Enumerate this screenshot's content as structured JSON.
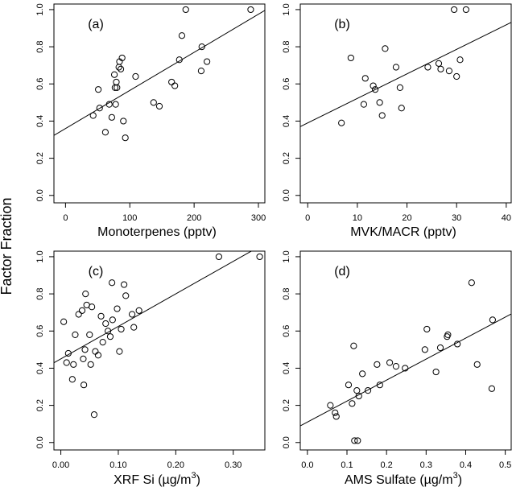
{
  "ylabel": "Factor Fraction",
  "chart_data": [
    {
      "type": "scatter",
      "panel": "(a)",
      "xlabel": "Monoterpenes (pptv)",
      "ylabel": "Factor Fraction",
      "xlim": [
        -18,
        310
      ],
      "ylim": [
        -0.04,
        1.03
      ],
      "xticks": [
        0,
        100,
        200,
        300
      ],
      "xtick_labels": [
        "0",
        "100",
        "200",
        "300"
      ],
      "yticks": [
        0.0,
        0.2,
        0.4,
        0.6,
        0.8,
        1.0
      ],
      "ytick_labels": [
        "0.0",
        "0.2",
        "0.4",
        "0.6",
        "0.8",
        "1.0"
      ],
      "grid": false,
      "points": [
        [
          43,
          0.43
        ],
        [
          51,
          0.57
        ],
        [
          53,
          0.47
        ],
        [
          62,
          0.34
        ],
        [
          68,
          0.49
        ],
        [
          72,
          0.42
        ],
        [
          76,
          0.65
        ],
        [
          77,
          0.58
        ],
        [
          78,
          0.49
        ],
        [
          79,
          0.61
        ],
        [
          80,
          0.58
        ],
        [
          83,
          0.69
        ],
        [
          84,
          0.72
        ],
        [
          86,
          0.68
        ],
        [
          88,
          0.74
        ],
        [
          90,
          0.4
        ],
        [
          93,
          0.31
        ],
        [
          109,
          0.64
        ],
        [
          137,
          0.5
        ],
        [
          146,
          0.48
        ],
        [
          165,
          0.61
        ],
        [
          170,
          0.59
        ],
        [
          177,
          0.73
        ],
        [
          181,
          0.86
        ],
        [
          187,
          1.0
        ],
        [
          211,
          0.67
        ],
        [
          212,
          0.8
        ],
        [
          220,
          0.72
        ],
        [
          288,
          1.0
        ]
      ],
      "fit": {
        "intercept": 0.36,
        "slope": 0.00205
      }
    },
    {
      "type": "scatter",
      "panel": "(b)",
      "xlabel": "MVK/MACR (pptv)",
      "ylabel": "Factor Fraction",
      "xlim": [
        -1.5,
        41
      ],
      "ylim": [
        -0.04,
        1.03
      ],
      "xticks": [
        0,
        10,
        20,
        30,
        40
      ],
      "xtick_labels": [
        "0",
        "10",
        "20",
        "30",
        "40"
      ],
      "yticks": [
        0.0,
        0.2,
        0.4,
        0.6,
        0.8,
        1.0
      ],
      "ytick_labels": [
        "0.0",
        "0.2",
        "0.4",
        "0.6",
        "0.8",
        "1.0"
      ],
      "grid": false,
      "points": [
        [
          6.8,
          0.39
        ],
        [
          8.7,
          0.74
        ],
        [
          11.3,
          0.49
        ],
        [
          11.6,
          0.63
        ],
        [
          13.2,
          0.59
        ],
        [
          13.6,
          0.57
        ],
        [
          14.5,
          0.5
        ],
        [
          15.0,
          0.43
        ],
        [
          15.6,
          0.79
        ],
        [
          17.8,
          0.69
        ],
        [
          18.6,
          0.58
        ],
        [
          18.9,
          0.47
        ],
        [
          24.2,
          0.69
        ],
        [
          26.4,
          0.71
        ],
        [
          26.8,
          0.68
        ],
        [
          28.5,
          0.67
        ],
        [
          29.5,
          1.0
        ],
        [
          30.0,
          0.64
        ],
        [
          30.7,
          0.73
        ],
        [
          31.9,
          1.0
        ]
      ],
      "fit": {
        "intercept": 0.39,
        "slope": 0.0132
      }
    },
    {
      "type": "scatter",
      "panel": "(c)",
      "xlabel": "XRF Si (µg/m³)",
      "xlabel_main": "XRF Si (",
      "xlabel_unit": "µg/m",
      "xlabel_sup": "3",
      "xlabel_close": ")",
      "ylabel": "Factor Fraction",
      "xlim": [
        -0.012,
        0.355
      ],
      "ylim": [
        -0.04,
        1.03
      ],
      "xticks": [
        0.0,
        0.1,
        0.2,
        0.3
      ],
      "xtick_labels": [
        "0.00",
        "0.10",
        "0.20",
        "0.30"
      ],
      "yticks": [
        0.0,
        0.2,
        0.4,
        0.6,
        0.8,
        1.0
      ],
      "ytick_labels": [
        "0.0",
        "0.2",
        "0.4",
        "0.6",
        "0.8",
        "1.0"
      ],
      "grid": false,
      "points": [
        [
          0.005,
          0.65
        ],
        [
          0.01,
          0.43
        ],
        [
          0.013,
          0.48
        ],
        [
          0.02,
          0.34
        ],
        [
          0.022,
          0.42
        ],
        [
          0.025,
          0.58
        ],
        [
          0.031,
          0.69
        ],
        [
          0.037,
          0.71
        ],
        [
          0.039,
          0.45
        ],
        [
          0.04,
          0.31
        ],
        [
          0.042,
          0.5
        ],
        [
          0.043,
          0.8
        ],
        [
          0.045,
          0.74
        ],
        [
          0.05,
          0.58
        ],
        [
          0.052,
          0.42
        ],
        [
          0.054,
          0.73
        ],
        [
          0.058,
          0.15
        ],
        [
          0.06,
          0.49
        ],
        [
          0.065,
          0.47
        ],
        [
          0.07,
          0.68
        ],
        [
          0.073,
          0.54
        ],
        [
          0.078,
          0.64
        ],
        [
          0.082,
          0.6
        ],
        [
          0.086,
          0.57
        ],
        [
          0.089,
          0.86
        ],
        [
          0.09,
          0.66
        ],
        [
          0.098,
          0.72
        ],
        [
          0.102,
          0.49
        ],
        [
          0.105,
          0.61
        ],
        [
          0.11,
          0.85
        ],
        [
          0.113,
          0.79
        ],
        [
          0.124,
          0.69
        ],
        [
          0.127,
          0.62
        ],
        [
          0.136,
          0.71
        ],
        [
          0.275,
          1.0
        ],
        [
          0.346,
          1.0
        ]
      ],
      "fit": {
        "intercept": 0.45,
        "slope": 1.75
      }
    },
    {
      "type": "scatter",
      "panel": "(d)",
      "xlabel": "AMS Sulfate (µg/m³)",
      "xlabel_main": "AMS Sulfate (",
      "xlabel_unit": "µg/m",
      "xlabel_sup": "3",
      "xlabel_close": ")",
      "ylabel": "Factor Fraction",
      "xlim": [
        -0.018,
        0.515
      ],
      "ylim": [
        -0.04,
        1.03
      ],
      "xticks": [
        0.0,
        0.1,
        0.2,
        0.3,
        0.4,
        0.5
      ],
      "xtick_labels": [
        "0.0",
        "0.1",
        "0.2",
        "0.3",
        "0.4",
        "0.5"
      ],
      "yticks": [
        0.0,
        0.2,
        0.4,
        0.6,
        0.8,
        1.0
      ],
      "ytick_labels": [
        "0.0",
        "0.2",
        "0.4",
        "0.6",
        "0.8",
        "1.0"
      ],
      "grid": false,
      "points": [
        [
          0.058,
          0.2
        ],
        [
          0.07,
          0.16
        ],
        [
          0.073,
          0.14
        ],
        [
          0.104,
          0.31
        ],
        [
          0.113,
          0.21
        ],
        [
          0.117,
          0.52
        ],
        [
          0.119,
          0.01
        ],
        [
          0.125,
          0.28
        ],
        [
          0.127,
          0.01
        ],
        [
          0.13,
          0.25
        ],
        [
          0.139,
          0.37
        ],
        [
          0.153,
          0.28
        ],
        [
          0.176,
          0.42
        ],
        [
          0.183,
          0.31
        ],
        [
          0.208,
          0.43
        ],
        [
          0.224,
          0.41
        ],
        [
          0.247,
          0.4
        ],
        [
          0.297,
          0.5
        ],
        [
          0.302,
          0.61
        ],
        [
          0.325,
          0.38
        ],
        [
          0.336,
          0.51
        ],
        [
          0.353,
          0.57
        ],
        [
          0.355,
          0.58
        ],
        [
          0.379,
          0.53
        ],
        [
          0.415,
          0.86
        ],
        [
          0.429,
          0.42
        ],
        [
          0.466,
          0.29
        ],
        [
          0.468,
          0.66
        ]
      ],
      "fit": {
        "intercept": 0.11,
        "slope": 1.13
      }
    }
  ]
}
